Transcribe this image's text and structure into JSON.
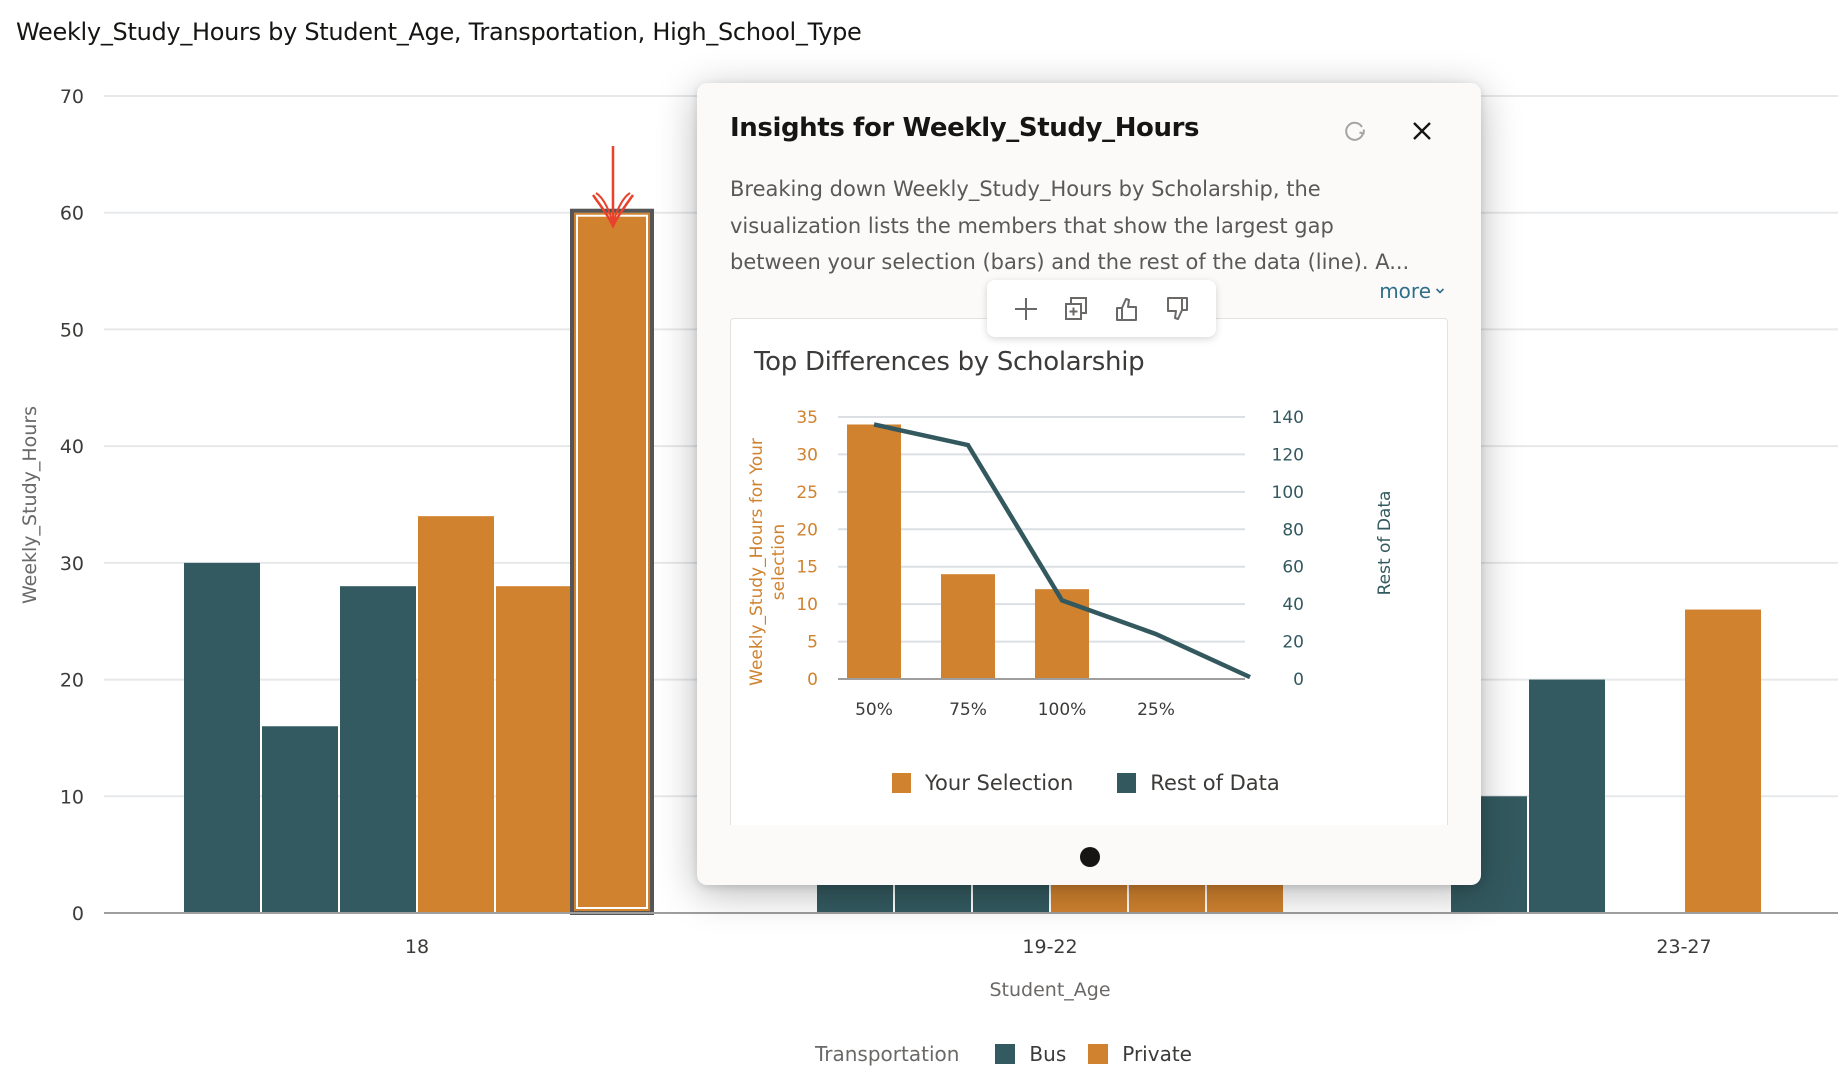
{
  "main": {
    "title": "Weekly_Study_Hours by Student_Age, Transportation, High_School_Type",
    "legend": {
      "title": "Transportation",
      "items": [
        {
          "label": "Bus",
          "color": "#335a60"
        },
        {
          "label": "Private",
          "color": "#d0822f"
        }
      ]
    }
  },
  "chart_data": [
    {
      "type": "bar",
      "title": "Weekly_Study_Hours by Student_Age, Transportation, High_School_Type",
      "xlabel": "Student_Age",
      "ylabel": "Weekly_Study_Hours",
      "ylim": [
        0,
        70
      ],
      "yticks": [
        0,
        10,
        20,
        30,
        40,
        50,
        60,
        70
      ],
      "grid": true,
      "legend_position": "bottom",
      "categories": [
        "18",
        "19-22",
        "23-27"
      ],
      "series": [
        {
          "name": "Bus",
          "color": "#335a60",
          "values": [
            [
              30,
              16,
              28
            ],
            [
              null,
              null,
              null
            ],
            [
              10,
              20,
              null
            ]
          ]
        },
        {
          "name": "Private",
          "color": "#d0822f",
          "values": [
            [
              34,
              28,
              60
            ],
            [
              null,
              null,
              null
            ],
            [
              26,
              null,
              null
            ]
          ]
        }
      ],
      "notes": "19-22 bars are obscured by the Insights popup; their values are not visible.",
      "selected": {
        "category": "18",
        "series": "Private",
        "index": 2,
        "value": 60
      }
    },
    {
      "type": "bar+line",
      "title": "Top Differences by Scholarship",
      "categories": [
        "50%",
        "75%",
        "100%",
        "25%",
        ""
      ],
      "series": [
        {
          "name": "Your Selection",
          "type": "bar",
          "axis": "left",
          "color": "#d0822f",
          "values": [
            34,
            14,
            12,
            0,
            0
          ]
        },
        {
          "name": "Rest of Data",
          "type": "line",
          "axis": "right",
          "color": "#33595f",
          "values": [
            136,
            125,
            42,
            24,
            1
          ]
        }
      ],
      "ylabel_left": "Weekly_Study_Hours for Your selection",
      "ylabel_right": "Rest of Data",
      "ylim_left": [
        0,
        35
      ],
      "yticks_left": [
        0,
        5,
        10,
        15,
        20,
        25,
        30,
        35
      ],
      "ylim_right": [
        0,
        140
      ],
      "yticks_right": [
        0,
        20,
        40,
        60,
        80,
        100,
        120,
        140
      ],
      "grid": true,
      "legend_position": "bottom"
    }
  ],
  "popup": {
    "title": "Insights for Weekly_Study_Hours",
    "refresh_icon": "refresh-icon",
    "close_icon": "close-icon",
    "description_lines": [
      "Breaking down Weekly_Study_Hours by Scholarship, the",
      "visualization lists the members that show the largest gap",
      "between your selection (bars) and the rest of the data (line). A..."
    ],
    "more_label": "more",
    "card_title": "Top Differences by Scholarship",
    "actions": [
      {
        "name": "add",
        "icon": "plus-icon"
      },
      {
        "name": "add-to-canvas",
        "icon": "copy-add-icon"
      },
      {
        "name": "like",
        "icon": "thumbs-up-icon"
      },
      {
        "name": "dislike",
        "icon": "thumbs-down-icon"
      }
    ],
    "page_indicator": {
      "current": 1,
      "total": 1
    }
  },
  "colors": {
    "bus": "#335a60",
    "private": "#d0822f",
    "annotation": "#e8412c"
  }
}
